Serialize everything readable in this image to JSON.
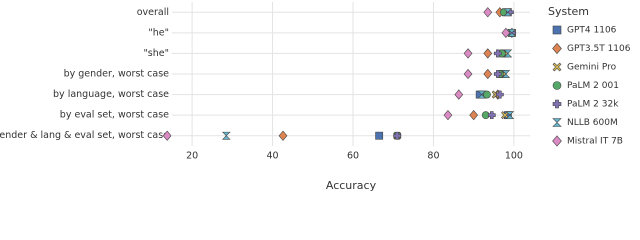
{
  "chart_data": {
    "type": "dot",
    "xlabel": "Accuracy",
    "legend_title": "System",
    "categories": [
      "overall",
      "\"he\"",
      "\"she\"",
      "by gender, worst case",
      "by language, worst case",
      "by eval set, worst case",
      "by gender & lang & eval set, worst case"
    ],
    "xlim": [
      15,
      104
    ],
    "xticks": [
      20,
      40,
      60,
      80,
      100
    ],
    "grid": true,
    "series": [
      {
        "name": "GPT4 1106",
        "color": "#4c72b0",
        "marker": "square",
        "values": [
          98,
          99.5,
          97.5,
          97,
          91.5,
          98.5,
          66.5
        ]
      },
      {
        "name": "GPT3.5T 1106",
        "color": "#dd8452",
        "marker": "diamond",
        "values": [
          96.5,
          99.5,
          93.5,
          93.5,
          96,
          90,
          42.6
        ]
      },
      {
        "name": "Gemini Pro",
        "color": "#d6b857",
        "marker": "x",
        "values": [
          98.5,
          99.5,
          98,
          97.5,
          95.5,
          97.8,
          71
        ]
      },
      {
        "name": "PaLM 2 001",
        "color": "#55a868",
        "marker": "circle",
        "values": [
          97.5,
          99,
          97,
          96.5,
          93.3,
          93,
          71
        ]
      },
      {
        "name": "PaLM 2 32k",
        "color": "#8172b3",
        "marker": "plus",
        "values": [
          99,
          99.5,
          96,
          96,
          96.5,
          94.5,
          71
        ]
      },
      {
        "name": "NLLB 600M",
        "color": "#64b5cd",
        "marker": "bowtie",
        "values": [
          98.5,
          99.5,
          98.5,
          98,
          92,
          99,
          28.5
        ]
      },
      {
        "name": "Mistral IT 7B",
        "color": "#da8bc3",
        "marker": "diamond",
        "values": [
          93.5,
          98,
          88.6,
          88.6,
          86.3,
          83.6,
          13.8
        ]
      }
    ]
  }
}
